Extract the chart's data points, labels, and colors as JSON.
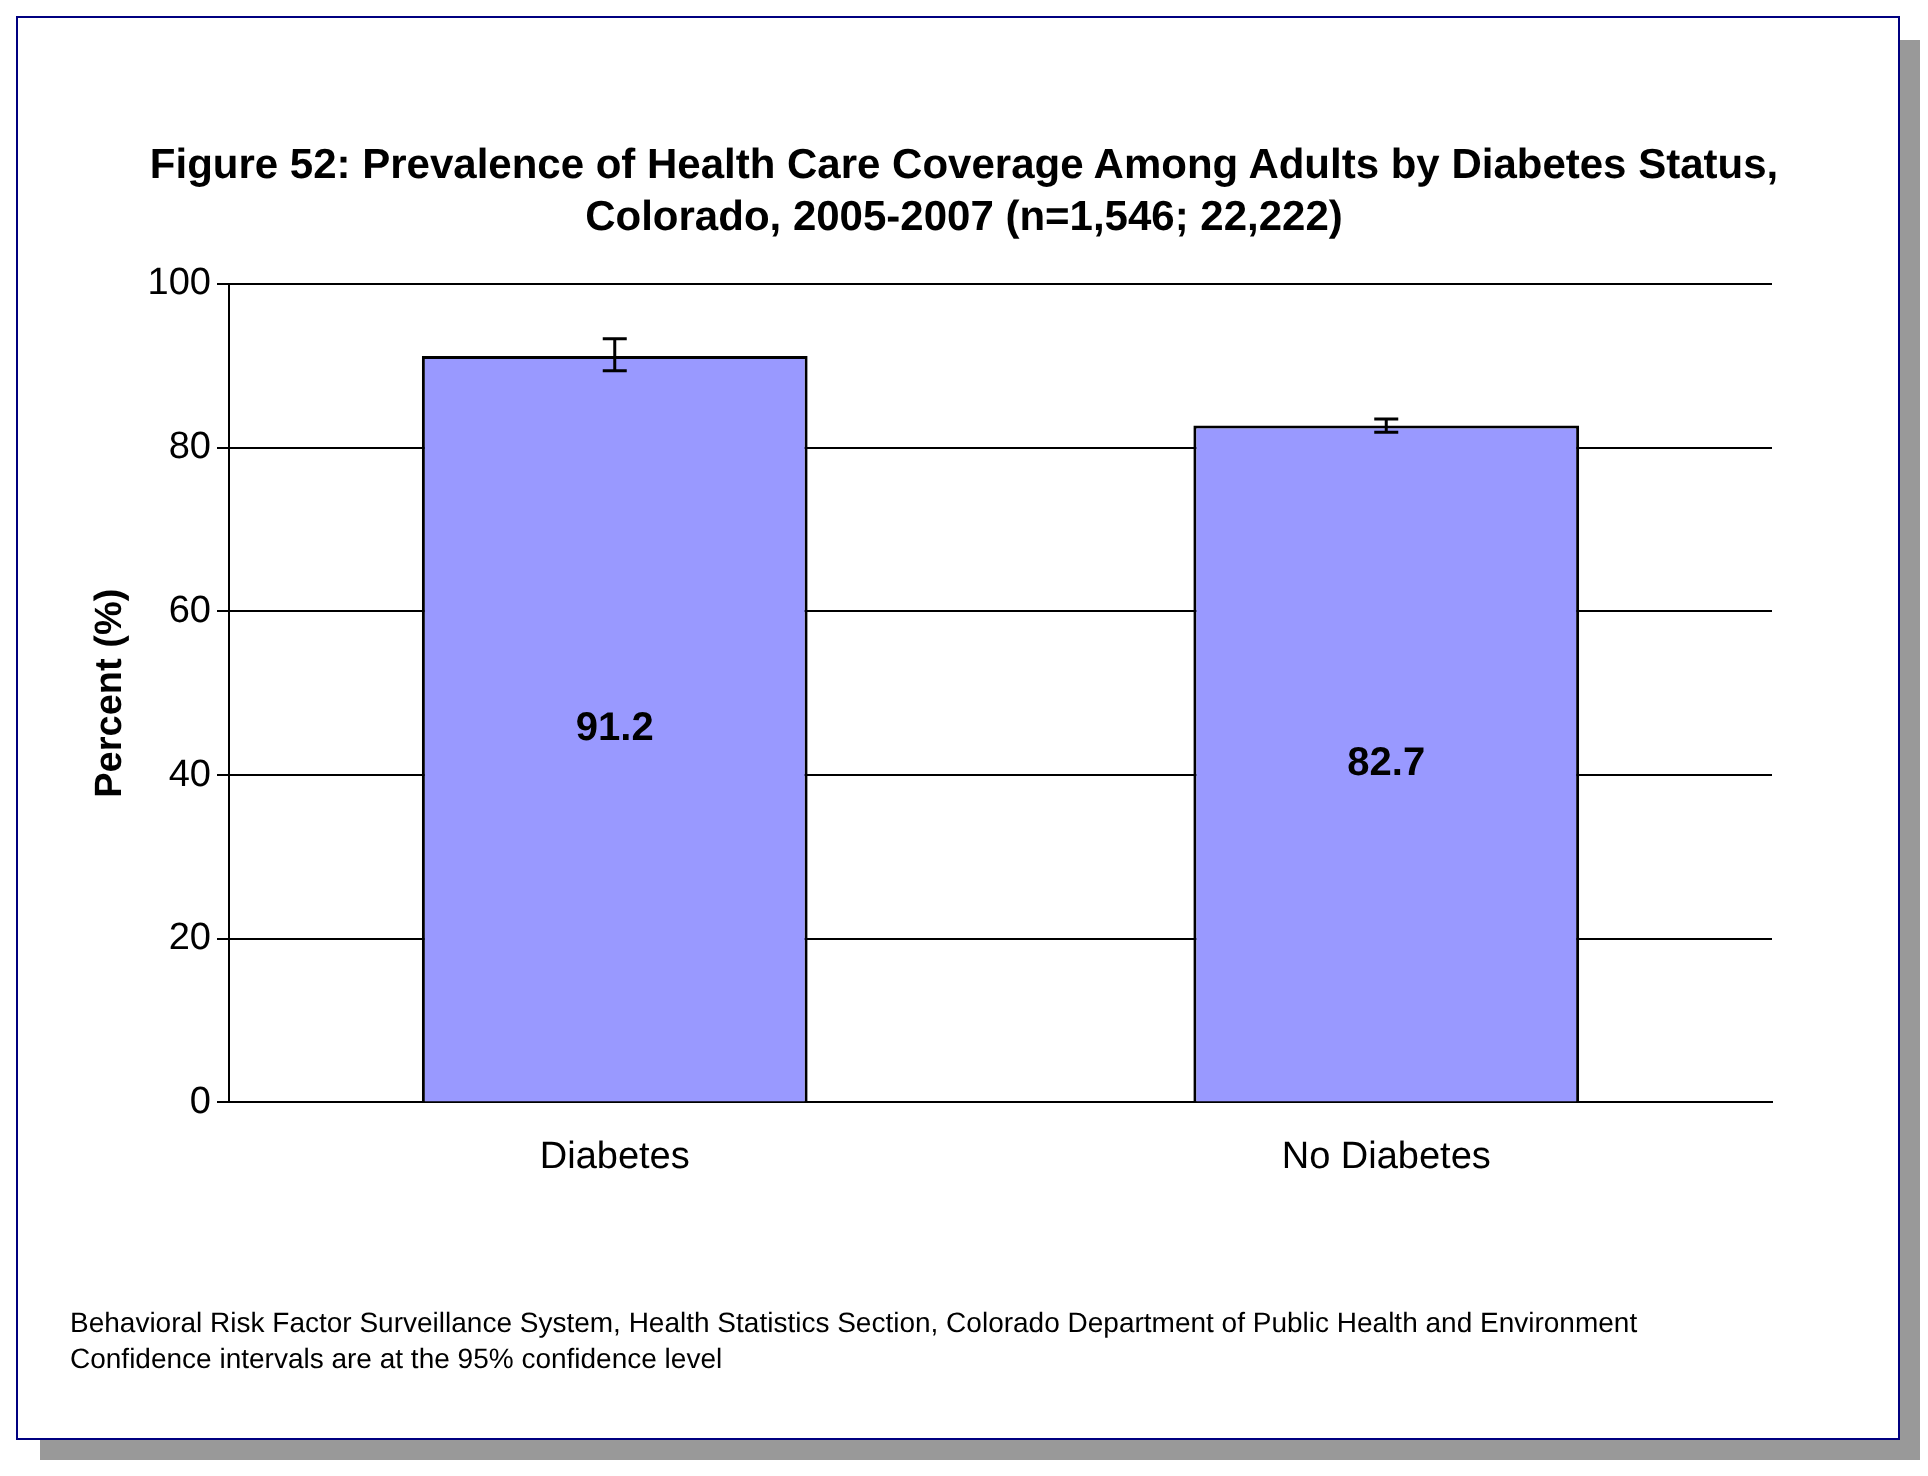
{
  "chart_data": {
    "type": "bar",
    "title": "Figure 52: Prevalence of Health Care Coverage Among Adults by Diabetes Status, Colorado, 2005-2007 (n=1,546; 22,222)",
    "ylabel": "Percent (%)",
    "categories": [
      "Diabetes",
      "No Diabetes"
    ],
    "values": [
      91.2,
      82.7
    ],
    "errors": [
      [
        89.4,
        93.3
      ],
      [
        81.9,
        83.5
      ]
    ],
    "color": "#9999ff",
    "ylim": [
      0,
      100
    ],
    "yticks": [
      0,
      20,
      40,
      60,
      80,
      100
    ],
    "grid": "y",
    "legend": false,
    "data_labels": true,
    "annotations": [
      "Behavioral Risk Factor Surveillance System, Health Statistics Section, Colorado Department of Public Health and Environment",
      "Confidence intervals are at the 95% confidence level"
    ]
  }
}
